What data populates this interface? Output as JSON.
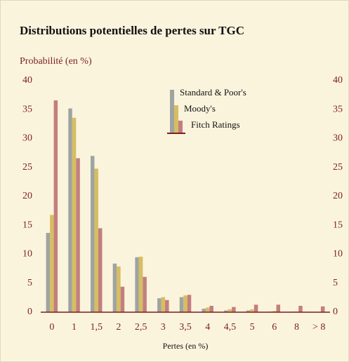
{
  "chart_data": {
    "type": "bar",
    "title": "Distributions potentielles de pertes sur TGC",
    "y_axis_label": "Probabilité (en %)",
    "x_axis_label": "Pertes (en %)",
    "categories": [
      "0",
      "1",
      "1,5",
      "2",
      "2,5",
      "3",
      "3,5",
      "4",
      "4,5",
      "5",
      "6",
      "8",
      "> 8"
    ],
    "series": [
      {
        "name": "Standard & Poor's",
        "color": "#9fa4a2",
        "values": [
          13.7,
          35.2,
          27.0,
          8.4,
          9.5,
          2.4,
          2.6,
          0.6,
          0.3,
          0.3,
          0.1,
          0.1,
          0
        ]
      },
      {
        "name": "Moody's",
        "color": "#d6be62",
        "values": [
          16.8,
          33.6,
          24.8,
          7.9,
          9.6,
          2.6,
          2.9,
          0.8,
          0.5,
          0.5,
          0.2,
          0.1,
          0
        ]
      },
      {
        "name": "Fitch Ratings",
        "color": "#c27f7f",
        "values": [
          36.6,
          26.6,
          14.5,
          4.4,
          6.1,
          2.1,
          3.0,
          1.1,
          0.9,
          1.3,
          1.3,
          1.1,
          1.0
        ]
      }
    ],
    "ylim": [
      0,
      40
    ],
    "yticks": [
      0,
      5,
      10,
      15,
      20,
      25,
      30,
      35,
      40
    ],
    "y2lim": [
      0,
      40
    ],
    "y2ticks": [
      0,
      5,
      10,
      15,
      20,
      25,
      30,
      35,
      40
    ],
    "grid": false
  }
}
